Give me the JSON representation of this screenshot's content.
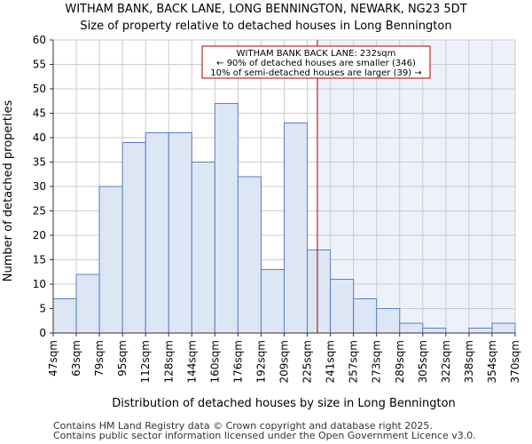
{
  "chart_data": {
    "type": "bar",
    "title": "WITHAM BANK, BACK LANE, LONG BENNINGTON, NEWARK, NG23 5DT",
    "subtitle": "Size of property relative to detached houses in Long Bennington",
    "xlabel": "Distribution of detached houses by size in Long Bennington",
    "ylabel": "Number of detached properties",
    "ylim": [
      0,
      60
    ],
    "yticks": [
      0,
      5,
      10,
      15,
      20,
      25,
      30,
      35,
      40,
      45,
      50,
      55,
      60
    ],
    "bin_edges": [
      47,
      63,
      79,
      95,
      112,
      128,
      144,
      160,
      176,
      192,
      209,
      225,
      241,
      257,
      273,
      289,
      305,
      322,
      338,
      354,
      370
    ],
    "bin_edge_labels": [
      "47sqm",
      "63sqm",
      "79sqm",
      "95sqm",
      "112sqm",
      "128sqm",
      "144sqm",
      "160sqm",
      "176sqm",
      "192sqm",
      "209sqm",
      "225sqm",
      "241sqm",
      "257sqm",
      "273sqm",
      "289sqm",
      "305sqm",
      "322sqm",
      "338sqm",
      "354sqm",
      "370sqm"
    ],
    "values": [
      7,
      12,
      30,
      39,
      41,
      41,
      35,
      47,
      32,
      13,
      43,
      17,
      11,
      7,
      5,
      2,
      1,
      0,
      1,
      2
    ],
    "marker": {
      "value": 232,
      "color": "#aa0000"
    },
    "annotation": {
      "lines": [
        "WITHAM BANK BACK LANE: 232sqm",
        "← 90% of detached houses are smaller (346)",
        "10% of semi-detached houses are larger (39) →"
      ]
    },
    "colors": {
      "bar_fill": "#dce6f5",
      "bar_edge": "#5b7fc4",
      "highlight_region": "#eef1fa"
    }
  },
  "footer": {
    "line1": "Contains HM Land Registry data © Crown copyright and database right 2025.",
    "line2": "Contains public sector information licensed under the Open Government Licence v3.0."
  }
}
